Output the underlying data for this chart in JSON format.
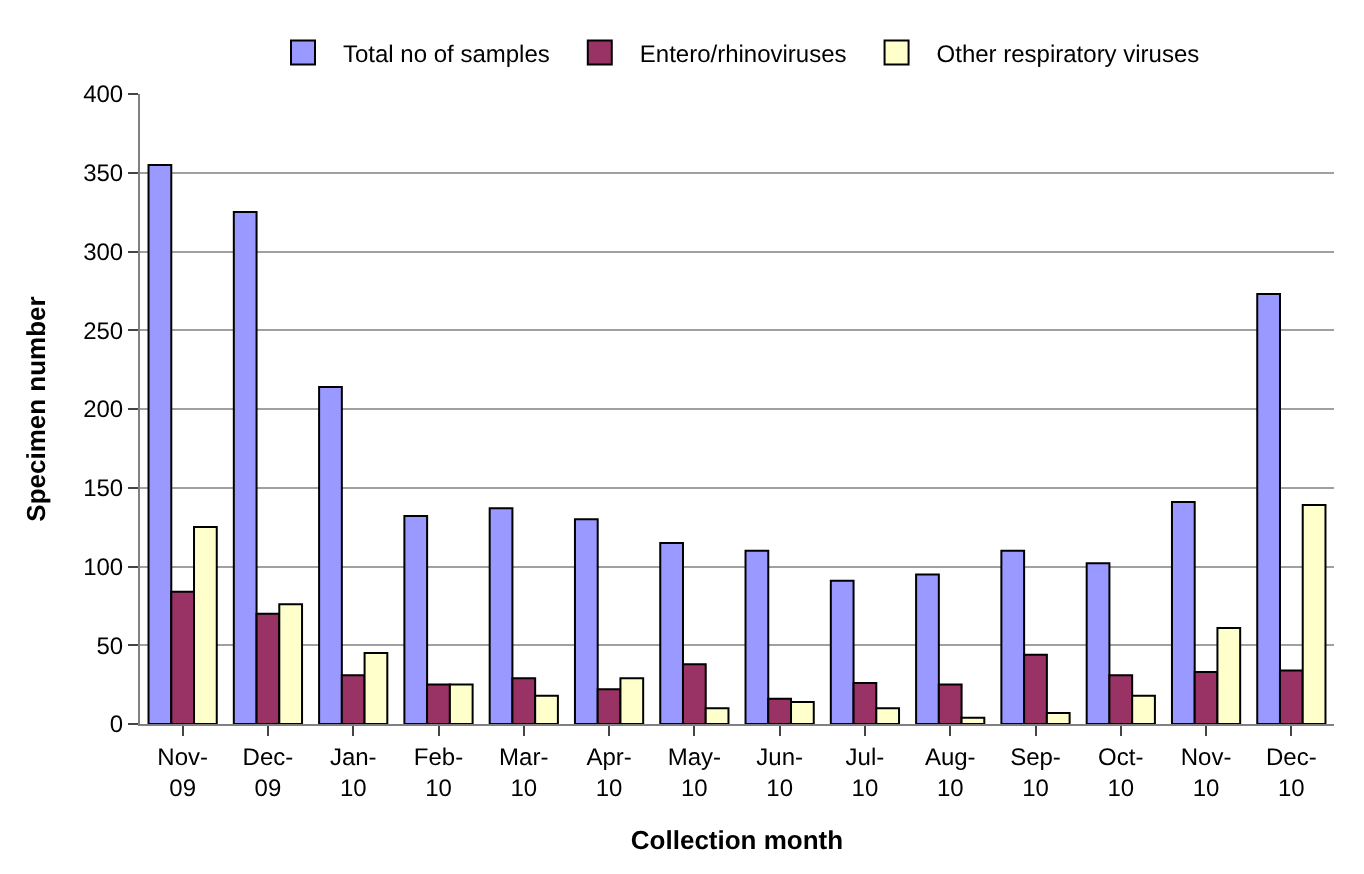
{
  "chart_data": {
    "type": "bar",
    "xlabel": "Collection month",
    "ylabel": "Specimen number",
    "categories": [
      "Nov-09",
      "Dec-09",
      "Jan-10",
      "Feb-10",
      "Mar-10",
      "Apr-10",
      "May-10",
      "Jun-10",
      "Jul-10",
      "Aug-10",
      "Sep-10",
      "Oct-10",
      "Nov-10",
      "Dec-10"
    ],
    "series": [
      {
        "name": "Total no of samples",
        "color": "#9999ff",
        "values": [
          355,
          325,
          214,
          132,
          137,
          130,
          115,
          110,
          91,
          95,
          110,
          102,
          141,
          273
        ]
      },
      {
        "name": "Entero/rhinoviruses",
        "color": "#993366",
        "values": [
          84,
          70,
          31,
          25,
          29,
          22,
          38,
          16,
          26,
          25,
          44,
          31,
          33,
          34
        ]
      },
      {
        "name": "Other respiratory viruses",
        "color": "#ffffcc",
        "values": [
          125,
          76,
          45,
          25,
          18,
          29,
          10,
          14,
          10,
          4,
          7,
          18,
          61,
          139
        ]
      }
    ],
    "ylim": [
      0,
      400
    ],
    "yticks": [
      0,
      50,
      100,
      150,
      200,
      250,
      300,
      350,
      400
    ],
    "grid": "y",
    "legend": "top"
  }
}
